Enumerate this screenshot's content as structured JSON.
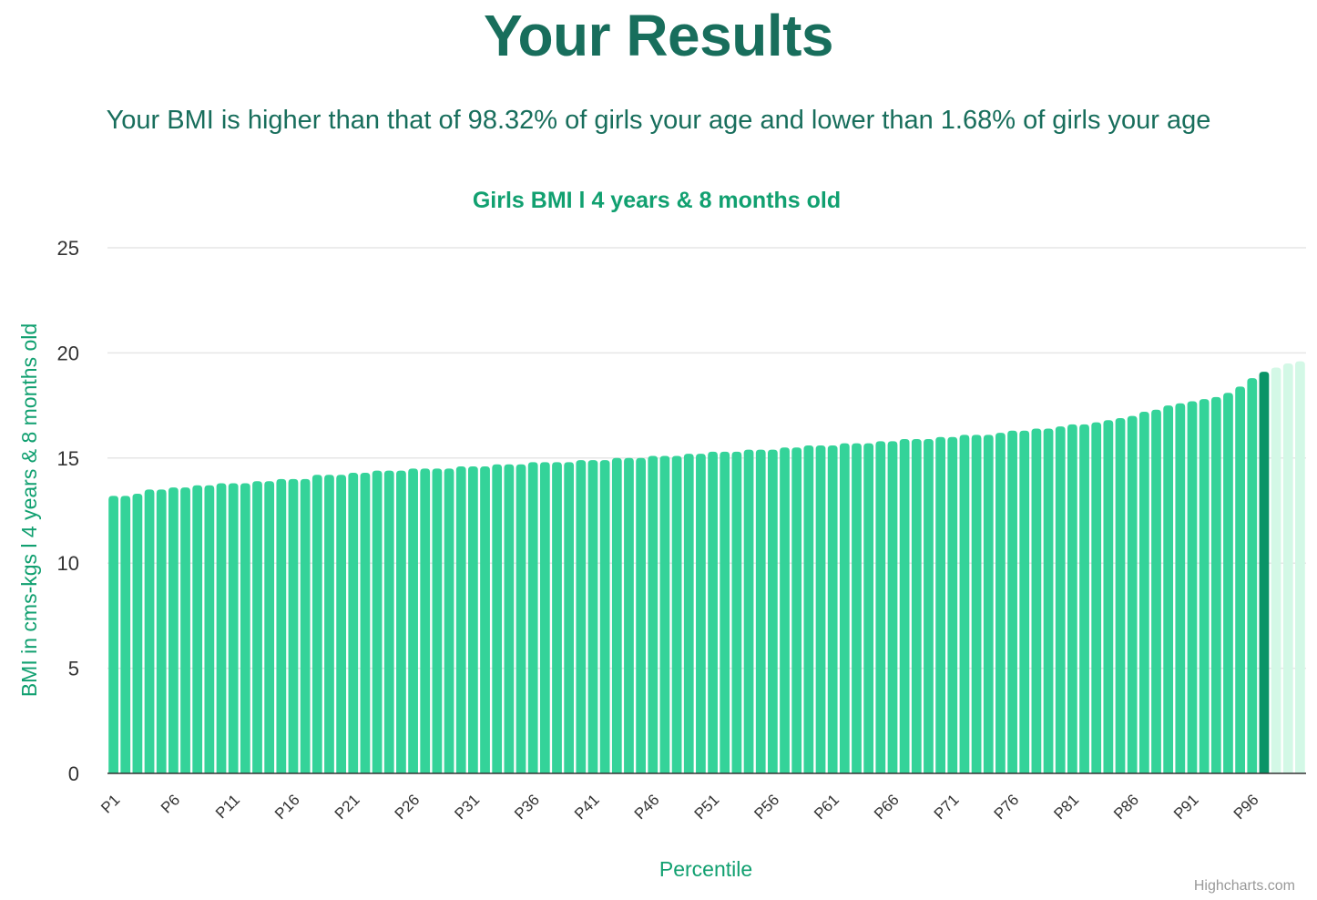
{
  "header": {
    "title": "Your Results",
    "summary": "Your BMI is higher than that of 98.32% of girls your age and lower than 1.68% of girls your age"
  },
  "credits": "Highcharts.com",
  "colors": {
    "heading": "#186e5c",
    "accent": "#11a070",
    "bar": "#34d399",
    "bar_highlight": "#0a9467",
    "bar_above": "#d3f8e6",
    "grid": "#e6e6e6",
    "axis_line": "#333333"
  },
  "chart_data": {
    "type": "bar",
    "title": "Girls BMI l 4 years & 8 months old",
    "xlabel": "Percentile",
    "ylabel": "BMI in cms-kgs l 4 years & 8 months old",
    "ylim": [
      0,
      25
    ],
    "y_ticks": [
      0,
      5,
      10,
      15,
      20,
      25
    ],
    "grid": true,
    "x_tick_labels": [
      "P1",
      "P6",
      "P11",
      "P16",
      "P21",
      "P26",
      "P31",
      "P36",
      "P41",
      "P46",
      "P51",
      "P56",
      "P61",
      "P66",
      "P71",
      "P76",
      "P81",
      "P86",
      "P91",
      "P96"
    ],
    "categories": [
      "P1",
      "P2",
      "P3",
      "P4",
      "P5",
      "P6",
      "P7",
      "P8",
      "P9",
      "P10",
      "P11",
      "P12",
      "P13",
      "P14",
      "P15",
      "P16",
      "P17",
      "P18",
      "P19",
      "P20",
      "P21",
      "P22",
      "P23",
      "P24",
      "P25",
      "P26",
      "P27",
      "P28",
      "P29",
      "P30",
      "P31",
      "P32",
      "P33",
      "P34",
      "P35",
      "P36",
      "P37",
      "P38",
      "P39",
      "P40",
      "P41",
      "P42",
      "P43",
      "P44",
      "P45",
      "P46",
      "P47",
      "P48",
      "P49",
      "P50",
      "P51",
      "P52",
      "P53",
      "P54",
      "P55",
      "P56",
      "P57",
      "P58",
      "P59",
      "P60",
      "P61",
      "P62",
      "P63",
      "P64",
      "P65",
      "P66",
      "P67",
      "P68",
      "P69",
      "P70",
      "P71",
      "P72",
      "P73",
      "P74",
      "P75",
      "P76",
      "P77",
      "P78",
      "P79",
      "P80",
      "P81",
      "P82",
      "P83",
      "P84",
      "P85",
      "P86",
      "P87",
      "P88",
      "P89",
      "P90",
      "P91",
      "P92",
      "P93",
      "P94",
      "P95",
      "P96",
      "P97",
      "P98",
      "P99",
      "P100"
    ],
    "values": [
      13.2,
      13.2,
      13.3,
      13.5,
      13.5,
      13.6,
      13.6,
      13.7,
      13.7,
      13.8,
      13.8,
      13.8,
      13.9,
      13.9,
      14.0,
      14.0,
      14.0,
      14.2,
      14.2,
      14.2,
      14.3,
      14.3,
      14.4,
      14.4,
      14.4,
      14.5,
      14.5,
      14.5,
      14.5,
      14.6,
      14.6,
      14.6,
      14.7,
      14.7,
      14.7,
      14.8,
      14.8,
      14.8,
      14.8,
      14.9,
      14.9,
      14.9,
      15.0,
      15.0,
      15.0,
      15.1,
      15.1,
      15.1,
      15.2,
      15.2,
      15.3,
      15.3,
      15.3,
      15.4,
      15.4,
      15.4,
      15.5,
      15.5,
      15.6,
      15.6,
      15.6,
      15.7,
      15.7,
      15.7,
      15.8,
      15.8,
      15.9,
      15.9,
      15.9,
      16.0,
      16.0,
      16.1,
      16.1,
      16.1,
      16.2,
      16.3,
      16.3,
      16.4,
      16.4,
      16.5,
      16.6,
      16.6,
      16.7,
      16.8,
      16.9,
      17.0,
      17.2,
      17.3,
      17.5,
      17.6,
      17.7,
      17.8,
      17.9,
      18.1,
      18.4,
      18.8,
      19.1,
      19.3,
      19.5,
      19.6
    ],
    "highlight_index": 96
  }
}
